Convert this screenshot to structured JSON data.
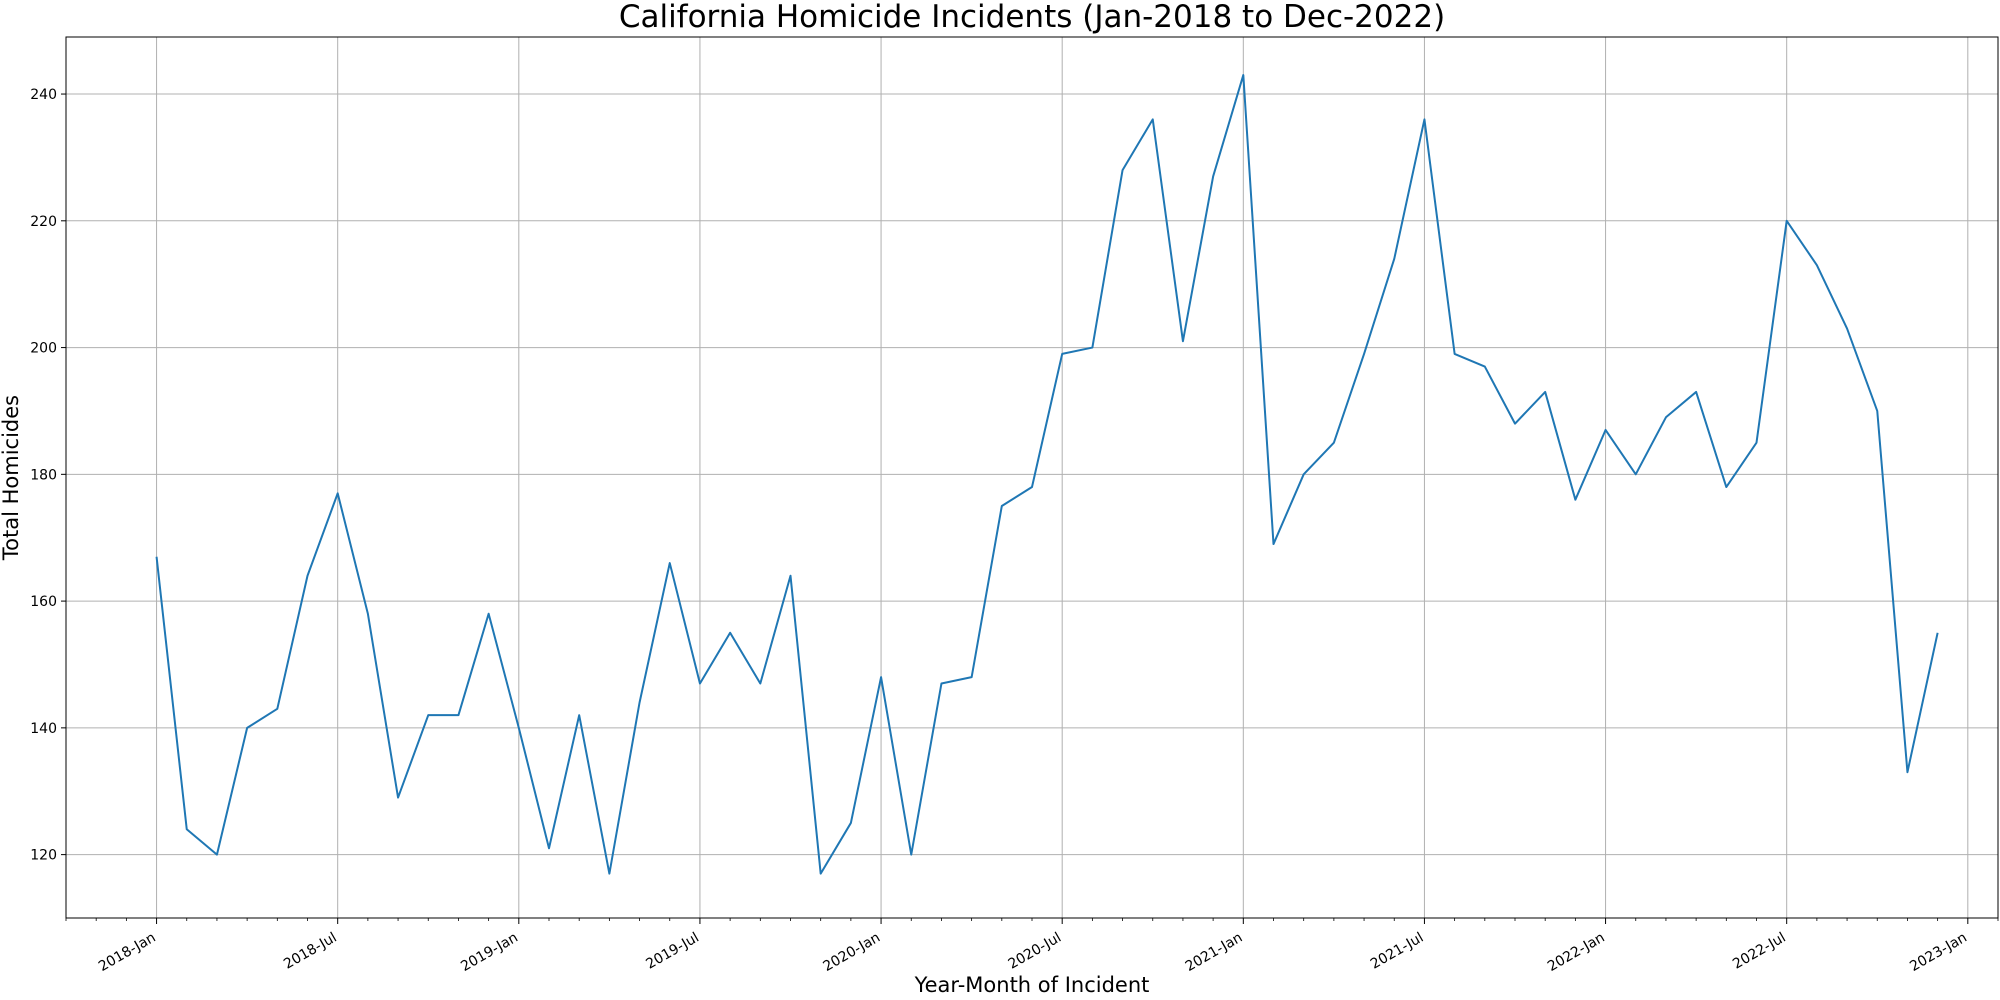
{
  "chart_data": {
    "type": "line",
    "title": "California Homicide Incidents (Jan-2018 to Dec-2022)",
    "xlabel": "Year-Month of Incident",
    "ylabel": "Total Homicides",
    "x": [
      "2018-01",
      "2018-02",
      "2018-03",
      "2018-04",
      "2018-05",
      "2018-06",
      "2018-07",
      "2018-08",
      "2018-09",
      "2018-10",
      "2018-11",
      "2018-12",
      "2019-01",
      "2019-02",
      "2019-03",
      "2019-04",
      "2019-05",
      "2019-06",
      "2019-07",
      "2019-08",
      "2019-09",
      "2019-10",
      "2019-11",
      "2019-12",
      "2020-01",
      "2020-02",
      "2020-03",
      "2020-04",
      "2020-05",
      "2020-06",
      "2020-07",
      "2020-08",
      "2020-09",
      "2020-10",
      "2020-11",
      "2020-12",
      "2021-01",
      "2021-02",
      "2021-03",
      "2021-04",
      "2021-05",
      "2021-06",
      "2021-07",
      "2021-08",
      "2021-09",
      "2021-10",
      "2021-11",
      "2021-12",
      "2022-01",
      "2022-02",
      "2022-03",
      "2022-04",
      "2022-05",
      "2022-06",
      "2022-07",
      "2022-08",
      "2022-09",
      "2022-10",
      "2022-11",
      "2022-12"
    ],
    "series": [
      {
        "color": "#1f77b4",
        "values": [
          167,
          124,
          120,
          140,
          143,
          164,
          177,
          158,
          129,
          142,
          142,
          158,
          140,
          121,
          142,
          117,
          144,
          166,
          147,
          155,
          147,
          164,
          117,
          125,
          148,
          120,
          147,
          148,
          175,
          178,
          199,
          200,
          228,
          236,
          201,
          227,
          243,
          169,
          180,
          185,
          199,
          214,
          236,
          199,
          197,
          188,
          193,
          176,
          187,
          180,
          189,
          193,
          178,
          185,
          220,
          213,
          203,
          190,
          133,
          155
        ]
      }
    ],
    "xticks": [
      {
        "date": "2018-01",
        "label": "2018-Jan"
      },
      {
        "date": "2018-07",
        "label": "2018-Jul"
      },
      {
        "date": "2019-01",
        "label": "2019-Jan"
      },
      {
        "date": "2019-07",
        "label": "2019-Jul"
      },
      {
        "date": "2020-01",
        "label": "2020-Jan"
      },
      {
        "date": "2020-07",
        "label": "2020-Jul"
      },
      {
        "date": "2021-01",
        "label": "2021-Jan"
      },
      {
        "date": "2021-07",
        "label": "2021-Jul"
      },
      {
        "date": "2022-01",
        "label": "2022-Jan"
      },
      {
        "date": "2022-07",
        "label": "2022-Jul"
      },
      {
        "date": "2023-01",
        "label": "2023-Jan"
      }
    ],
    "yticks": [
      120,
      140,
      160,
      180,
      200,
      220,
      240
    ],
    "xlim": [
      "2017-10",
      "2023-02"
    ],
    "ylim": [
      110,
      249
    ],
    "grid": true,
    "legend": "none",
    "colors": {
      "grid": "#b0b0b0",
      "axes": "#000000",
      "background": "#ffffff"
    }
  }
}
